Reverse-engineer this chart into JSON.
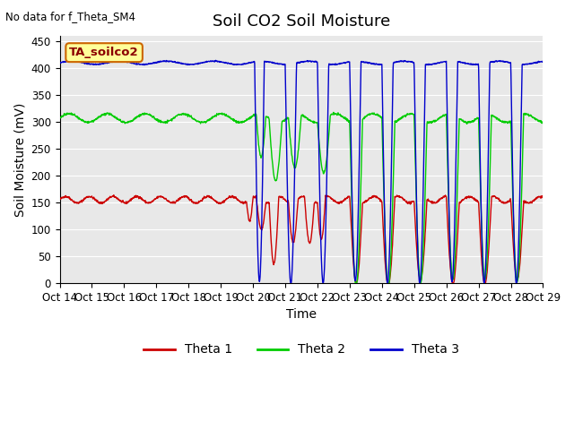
{
  "title": "Soil CO2 Soil Moisture",
  "top_left_text": "No data for f_Theta_SM4",
  "annotation_box": "TA_soilco2",
  "ylabel": "Soil Moisture (mV)",
  "xlabel": "Time",
  "ylim": [
    0,
    460
  ],
  "yticks": [
    0,
    50,
    100,
    150,
    200,
    250,
    300,
    350,
    400,
    450
  ],
  "x_tick_labels": [
    "Oct 14",
    "Oct 15",
    "Oct 16",
    "Oct 17",
    "Oct 18",
    "Oct 19",
    "Oct 20",
    "Oct 21",
    "Oct 22",
    "Oct 23",
    "Oct 24",
    "Oct 25",
    "Oct 26",
    "Oct 27",
    "Oct 28",
    "Oct 29"
  ],
  "colors": {
    "theta1": "#cc0000",
    "theta2": "#00cc00",
    "theta3": "#0000cc",
    "bg": "#e8e8e8",
    "annotation_bg": "#ffff99",
    "annotation_border": "#cc6600"
  },
  "legend_labels": [
    "Theta 1",
    "Theta 2",
    "Theta 3"
  ],
  "title_fontsize": 13,
  "axis_fontsize": 10,
  "tick_fontsize": 8.5
}
